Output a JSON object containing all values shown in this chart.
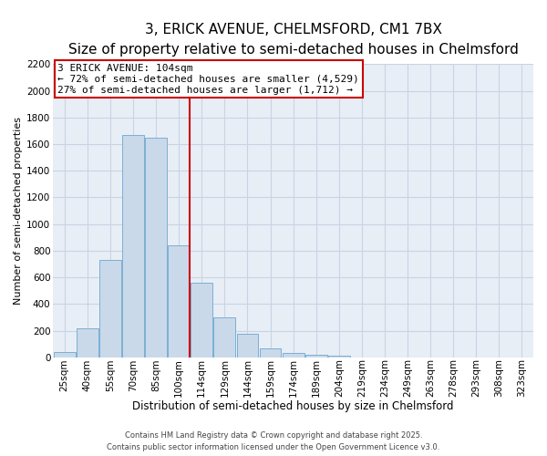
{
  "title": "3, ERICK AVENUE, CHELMSFORD, CM1 7BX",
  "subtitle": "Size of property relative to semi-detached houses in Chelmsford",
  "xlabel": "Distribution of semi-detached houses by size in Chelmsford",
  "ylabel": "Number of semi-detached properties",
  "categories": [
    "25sqm",
    "40sqm",
    "55sqm",
    "70sqm",
    "85sqm",
    "100sqm",
    "114sqm",
    "129sqm",
    "144sqm",
    "159sqm",
    "174sqm",
    "189sqm",
    "204sqm",
    "219sqm",
    "234sqm",
    "249sqm",
    "263sqm",
    "278sqm",
    "293sqm",
    "308sqm",
    "323sqm"
  ],
  "values": [
    40,
    220,
    730,
    1670,
    1650,
    840,
    560,
    300,
    180,
    70,
    30,
    20,
    10,
    0,
    0,
    0,
    0,
    0,
    0,
    0,
    0
  ],
  "bar_color": "#c9d9ea",
  "bar_edgecolor": "#7bafd4",
  "bar_linewidth": 0.7,
  "redline_color": "#cc0000",
  "annotation_text": "3 ERICK AVENUE: 104sqm\n← 72% of semi-detached houses are smaller (4,529)\n27% of semi-detached houses are larger (1,712) →",
  "annotation_box_edgecolor": "#cc0000",
  "ylim": [
    0,
    2200
  ],
  "yticks": [
    0,
    200,
    400,
    600,
    800,
    1000,
    1200,
    1400,
    1600,
    1800,
    2000,
    2200
  ],
  "grid_color": "#c8d4e4",
  "background_color": "#dde8f0",
  "plot_bg_color": "#e8eef5",
  "footnote": "Contains HM Land Registry data © Crown copyright and database right 2025.\nContains public sector information licensed under the Open Government Licence v3.0.",
  "title_fontsize": 11,
  "subtitle_fontsize": 9,
  "xlabel_fontsize": 8.5,
  "ylabel_fontsize": 8,
  "tick_fontsize": 7.5,
  "annot_fontsize": 8,
  "footnote_fontsize": 6
}
